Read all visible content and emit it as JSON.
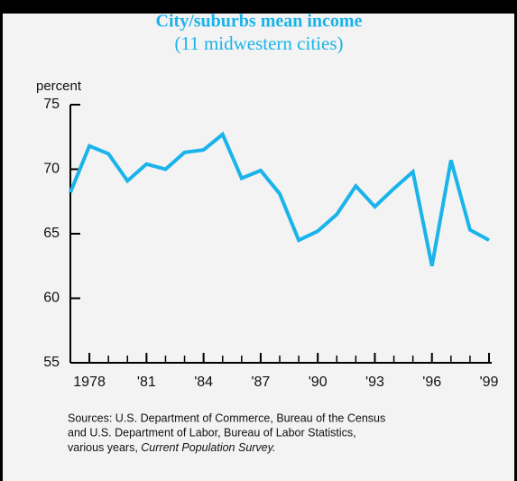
{
  "chart_data": {
    "type": "line",
    "title": "City/suburbs mean income",
    "subtitle": "(11 midwestern cities)",
    "y_label": "percent",
    "x": [
      1977,
      1978,
      1979,
      1980,
      1981,
      1982,
      1983,
      1984,
      1985,
      1986,
      1987,
      1988,
      1989,
      1990,
      1991,
      1992,
      1993,
      1994,
      1995,
      1996,
      1997,
      1998,
      1999
    ],
    "series": [
      {
        "name": "City/suburbs mean income",
        "color": "#1ab4ea",
        "values": [
          68.2,
          71.8,
          71.2,
          69.1,
          70.4,
          70.0,
          71.3,
          71.5,
          72.7,
          69.3,
          69.9,
          68.1,
          64.5,
          65.2,
          66.5,
          68.7,
          67.1,
          68.5,
          69.8,
          62.5,
          70.7,
          65.3,
          64.5
        ]
      }
    ],
    "xlim": [
      1977,
      1999
    ],
    "xticks": [
      {
        "value": 1978,
        "label": "1978"
      },
      {
        "value": 1981,
        "label": "'81"
      },
      {
        "value": 1984,
        "label": "'84"
      },
      {
        "value": 1987,
        "label": "'87"
      },
      {
        "value": 1990,
        "label": "'90"
      },
      {
        "value": 1993,
        "label": "'93"
      },
      {
        "value": 1996,
        "label": "'96"
      },
      {
        "value": 1999,
        "label": "'99"
      }
    ],
    "ylim": [
      55,
      75
    ],
    "yticks": [
      55,
      60,
      65,
      70,
      75
    ],
    "source_lines": [
      "Sources: U.S. Department of Commerce, Bureau of the Census",
      "and U.S. Department of Labor, Bureau of Labor Statistics,",
      "various years, "
    ],
    "source_italic": "Current Population Survey."
  }
}
